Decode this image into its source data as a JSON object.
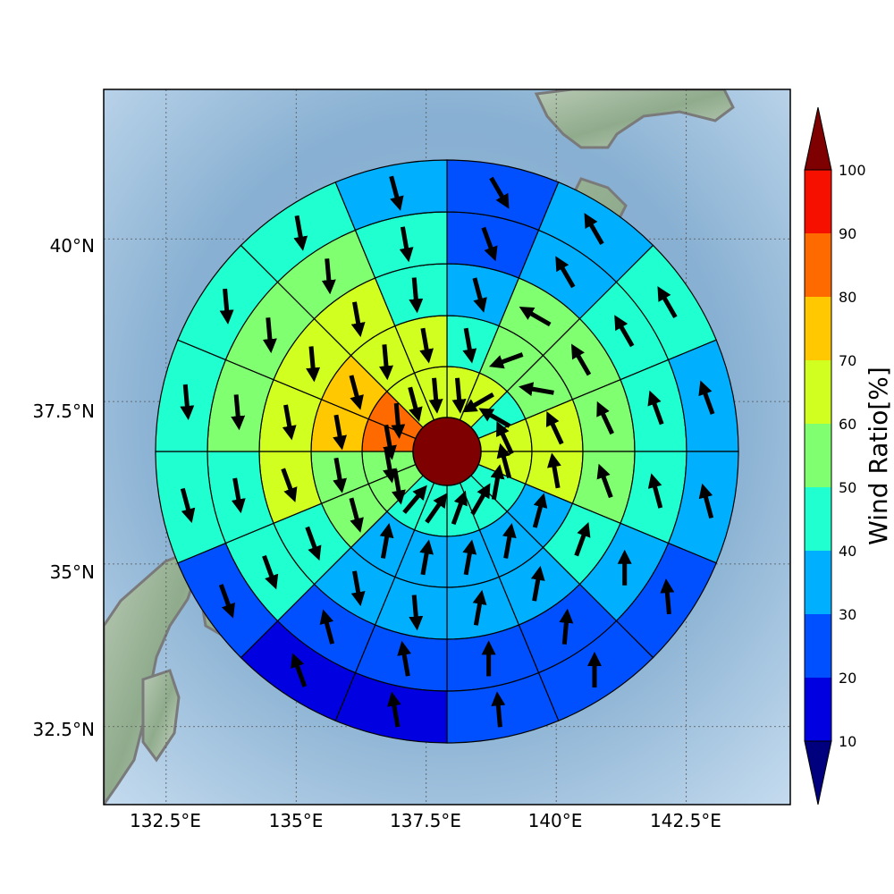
{
  "map": {
    "lon_ticks": [
      "132.5°E",
      "135°E",
      "137.5°E",
      "140°E",
      "142.5°E"
    ],
    "lat_ticks": [
      "40°N",
      "37.5°N",
      "35°N",
      "32.5°N"
    ],
    "extent": {
      "lon": [
        131.3,
        144.5
      ],
      "lat": [
        31.3,
        42.3
      ]
    },
    "center": {
      "lon": 137.9,
      "lat": 36.8
    }
  },
  "colorbar": {
    "label": "Wind Ratio[%]",
    "ticks": [
      "10",
      "20",
      "30",
      "40",
      "50",
      "60",
      "70",
      "80",
      "90",
      "100"
    ],
    "colors": [
      "#0000e0",
      "#0050ff",
      "#00b0ff",
      "#20ffd0",
      "#80ff70",
      "#d0ff20",
      "#ffc800",
      "#ff6a00",
      "#f51000"
    ],
    "under_color": "#00007f",
    "over_color": "#7f0000"
  },
  "chart_data": {
    "type": "polar_sector_wind_map",
    "center_value": 100,
    "center_color": "#7f0000",
    "units": "percent",
    "sectors_per_ring": 16,
    "sector_start": "north, clockwise",
    "rings": [
      {
        "ring": 1,
        "values": [
          62,
          62,
          42,
          62,
          62,
          42,
          42,
          42,
          42,
          42,
          58,
          58,
          82,
          82,
          62,
          62
        ],
        "arrow_direction_deg": [
          175,
          240,
          300,
          335,
          345,
          10,
          30,
          20,
          35,
          40,
          170,
          170,
          170,
          175,
          165,
          175
        ]
      },
      {
        "ring": 2,
        "values": [
          42,
          55,
          55,
          62,
          62,
          38,
          38,
          38,
          38,
          38,
          58,
          58,
          75,
          75,
          62,
          62
        ],
        "arrow_direction_deg": [
          170,
          250,
          280,
          335,
          350,
          15,
          10,
          10,
          10,
          10,
          165,
          170,
          170,
          165,
          175,
          170
        ]
      },
      {
        "ring": 3,
        "values": [
          35,
          52,
          55,
          55,
          55,
          45,
          35,
          35,
          35,
          35,
          45,
          62,
          62,
          62,
          62,
          45
        ],
        "arrow_direction_deg": [
          165,
          300,
          330,
          335,
          340,
          20,
          10,
          10,
          175,
          170,
          160,
          160,
          170,
          175,
          170,
          175
        ]
      },
      {
        "ring": 4,
        "values": [
          25,
          38,
          45,
          45,
          42,
          38,
          25,
          25,
          22,
          25,
          40,
          42,
          52,
          55,
          52,
          42
        ],
        "arrow_direction_deg": [
          160,
          330,
          330,
          340,
          345,
          0,
          5,
          0,
          350,
          345,
          160,
          170,
          175,
          175,
          175,
          170
        ]
      },
      {
        "ring": 5,
        "values": [
          25,
          35,
          42,
          32,
          32,
          22,
          22,
          22,
          15,
          15,
          25,
          42,
          45,
          45,
          42,
          38
        ],
        "arrow_direction_deg": [
          150,
          330,
          330,
          340,
          345,
          355,
          0,
          355,
          350,
          340,
          160,
          165,
          175,
          175,
          170,
          165
        ]
      }
    ]
  }
}
